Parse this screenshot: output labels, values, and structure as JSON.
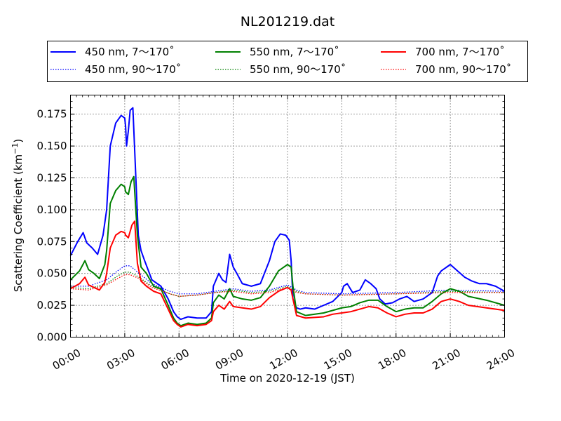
{
  "chart_data": {
    "type": "line",
    "title": "NL201219.dat",
    "xlabel": "Time on 2020-12-19 (JST)",
    "ylabel_main": "Scattering Coefficient (km",
    "ylabel_sup": "−1",
    "ylabel_close": ")",
    "xlim": [
      0,
      24
    ],
    "ylim": [
      0,
      0.19
    ],
    "grid": true,
    "legend_placement": "top, above plot",
    "x_ticks": [
      0,
      3,
      6,
      9,
      12,
      15,
      18,
      21,
      24
    ],
    "x_tick_labels": [
      "00:00",
      "03:00",
      "06:00",
      "09:00",
      "12:00",
      "15:00",
      "18:00",
      "21:00",
      "24:00"
    ],
    "y_ticks": [
      0,
      0.025,
      0.05,
      0.075,
      0.1,
      0.125,
      0.15,
      0.175
    ],
    "y_tick_labels": [
      "0.000",
      "0.025",
      "0.050",
      "0.075",
      "0.100",
      "0.125",
      "0.150",
      "0.175"
    ],
    "series": [
      {
        "name": "450 nm, 7～170˚",
        "color": "#0000ff",
        "style": "solid",
        "x": [
          0,
          0.4,
          0.7,
          0.9,
          1.2,
          1.5,
          1.8,
          2.0,
          2.2,
          2.5,
          2.8,
          3.0,
          3.05,
          3.1,
          3.2,
          3.3,
          3.45,
          3.6,
          3.75,
          3.9,
          4.1,
          4.5,
          5.0,
          5.4,
          5.7,
          5.9,
          6.1,
          6.5,
          7.0,
          7.5,
          7.8,
          7.9,
          8.2,
          8.4,
          8.6,
          8.8,
          9.0,
          9.2,
          9.5,
          10.0,
          10.5,
          11.0,
          11.3,
          11.6,
          11.9,
          12.1,
          12.2,
          12.3,
          12.5,
          12.7,
          13.0,
          13.5,
          14.0,
          14.5,
          15.0,
          15.1,
          15.3,
          15.6,
          16.0,
          16.3,
          16.6,
          16.9,
          17.1,
          17.4,
          17.8,
          18.2,
          18.6,
          19.0,
          19.5,
          20.0,
          20.3,
          20.5,
          20.8,
          21.0,
          21.4,
          21.8,
          22.2,
          22.6,
          23.0,
          23.5,
          24.0
        ],
        "y": [
          0.064,
          0.075,
          0.082,
          0.074,
          0.07,
          0.065,
          0.08,
          0.1,
          0.15,
          0.168,
          0.174,
          0.172,
          0.165,
          0.15,
          0.162,
          0.178,
          0.18,
          0.13,
          0.08,
          0.068,
          0.06,
          0.045,
          0.04,
          0.03,
          0.02,
          0.016,
          0.014,
          0.016,
          0.015,
          0.015,
          0.02,
          0.04,
          0.05,
          0.045,
          0.043,
          0.065,
          0.055,
          0.05,
          0.042,
          0.04,
          0.042,
          0.06,
          0.075,
          0.081,
          0.08,
          0.076,
          0.06,
          0.03,
          0.023,
          0.022,
          0.023,
          0.022,
          0.025,
          0.028,
          0.035,
          0.04,
          0.042,
          0.035,
          0.037,
          0.045,
          0.042,
          0.038,
          0.03,
          0.026,
          0.027,
          0.03,
          0.032,
          0.028,
          0.03,
          0.035,
          0.048,
          0.052,
          0.055,
          0.057,
          0.052,
          0.047,
          0.044,
          0.042,
          0.042,
          0.04,
          0.036
        ]
      },
      {
        "name": "450 nm, 90～170˚",
        "color": "#0000ff",
        "style": "dotted",
        "x": [
          0,
          1.0,
          2.0,
          2.6,
          3.0,
          3.3,
          3.8,
          4.5,
          5.5,
          6.0,
          7.0,
          8.0,
          9.0,
          10.0,
          11.0,
          12.0,
          12.5,
          13.0,
          15.0,
          18.0,
          21.0,
          24.0
        ],
        "y": [
          0.04,
          0.04,
          0.045,
          0.052,
          0.056,
          0.056,
          0.05,
          0.042,
          0.036,
          0.034,
          0.034,
          0.036,
          0.038,
          0.036,
          0.037,
          0.041,
          0.037,
          0.035,
          0.034,
          0.035,
          0.037,
          0.036
        ]
      },
      {
        "name": "550 nm, 7～170˚",
        "color": "#008000",
        "style": "solid",
        "x": [
          0,
          0.5,
          0.8,
          1.0,
          1.3,
          1.6,
          1.9,
          2.0,
          2.2,
          2.5,
          2.8,
          3.0,
          3.05,
          3.2,
          3.35,
          3.5,
          3.7,
          3.9,
          4.2,
          4.6,
          5.0,
          5.4,
          5.7,
          5.9,
          6.1,
          6.5,
          7.0,
          7.5,
          7.8,
          7.9,
          8.2,
          8.5,
          8.8,
          9.0,
          9.5,
          10.0,
          10.5,
          11.0,
          11.5,
          12.0,
          12.2,
          12.3,
          12.5,
          13.0,
          14.0,
          14.5,
          15.0,
          15.5,
          16.0,
          16.5,
          17.0,
          17.5,
          18.0,
          18.5,
          19.0,
          19.5,
          20.0,
          20.5,
          21.0,
          21.5,
          22.0,
          23.0,
          24.0
        ],
        "y": [
          0.045,
          0.052,
          0.06,
          0.053,
          0.05,
          0.046,
          0.057,
          0.068,
          0.105,
          0.115,
          0.12,
          0.118,
          0.114,
          0.112,
          0.122,
          0.126,
          0.08,
          0.055,
          0.05,
          0.04,
          0.038,
          0.025,
          0.015,
          0.011,
          0.009,
          0.011,
          0.01,
          0.011,
          0.015,
          0.027,
          0.033,
          0.03,
          0.038,
          0.032,
          0.03,
          0.029,
          0.031,
          0.04,
          0.052,
          0.057,
          0.055,
          0.04,
          0.02,
          0.017,
          0.019,
          0.021,
          0.023,
          0.024,
          0.027,
          0.029,
          0.029,
          0.024,
          0.02,
          0.022,
          0.023,
          0.023,
          0.028,
          0.034,
          0.038,
          0.036,
          0.032,
          0.029,
          0.025
        ]
      },
      {
        "name": "550 nm, 90～170˚",
        "color": "#008000",
        "style": "dotted",
        "x": [
          0,
          1.0,
          2.0,
          2.6,
          3.0,
          3.3,
          3.8,
          4.5,
          5.5,
          6.0,
          7.0,
          8.0,
          9.0,
          10.0,
          11.0,
          12.0,
          12.5,
          13.0,
          15.0,
          18.0,
          21.0,
          24.0
        ],
        "y": [
          0.039,
          0.038,
          0.042,
          0.048,
          0.051,
          0.051,
          0.047,
          0.04,
          0.034,
          0.032,
          0.033,
          0.035,
          0.037,
          0.035,
          0.036,
          0.04,
          0.036,
          0.034,
          0.033,
          0.034,
          0.036,
          0.035
        ]
      },
      {
        "name": "700 nm, 7～170˚",
        "color": "#ff0000",
        "style": "solid",
        "x": [
          0,
          0.5,
          0.8,
          1.0,
          1.3,
          1.6,
          1.9,
          2.0,
          2.2,
          2.5,
          2.8,
          3.0,
          3.05,
          3.2,
          3.4,
          3.55,
          3.7,
          3.9,
          4.2,
          4.6,
          5.0,
          5.4,
          5.7,
          5.9,
          6.1,
          6.5,
          7.0,
          7.5,
          7.8,
          7.9,
          8.2,
          8.5,
          8.8,
          9.0,
          9.5,
          10.0,
          10.5,
          11.0,
          11.5,
          12.0,
          12.2,
          12.3,
          12.5,
          13.0,
          14.0,
          14.5,
          15.0,
          15.5,
          16.0,
          16.5,
          17.0,
          17.5,
          18.0,
          18.5,
          19.0,
          19.5,
          20.0,
          20.5,
          21.0,
          21.5,
          22.0,
          23.0,
          24.0
        ],
        "y": [
          0.038,
          0.042,
          0.047,
          0.041,
          0.039,
          0.037,
          0.043,
          0.05,
          0.07,
          0.08,
          0.083,
          0.082,
          0.08,
          0.078,
          0.088,
          0.091,
          0.058,
          0.044,
          0.04,
          0.036,
          0.034,
          0.022,
          0.013,
          0.01,
          0.008,
          0.01,
          0.009,
          0.01,
          0.013,
          0.02,
          0.025,
          0.022,
          0.028,
          0.024,
          0.023,
          0.022,
          0.024,
          0.031,
          0.036,
          0.039,
          0.037,
          0.03,
          0.017,
          0.015,
          0.016,
          0.018,
          0.019,
          0.02,
          0.022,
          0.024,
          0.023,
          0.019,
          0.016,
          0.018,
          0.019,
          0.019,
          0.022,
          0.028,
          0.03,
          0.028,
          0.025,
          0.023,
          0.021
        ]
      },
      {
        "name": "700 nm, 90～170˚",
        "color": "#ff0000",
        "style": "dotted",
        "x": [
          0,
          1.0,
          2.0,
          2.6,
          3.0,
          3.3,
          3.8,
          4.5,
          5.5,
          6.0,
          7.0,
          8.0,
          9.0,
          10.0,
          11.0,
          12.0,
          12.5,
          13.0,
          15.0,
          18.0,
          21.0,
          24.0
        ],
        "y": [
          0.038,
          0.037,
          0.041,
          0.046,
          0.049,
          0.049,
          0.046,
          0.039,
          0.034,
          0.032,
          0.033,
          0.035,
          0.036,
          0.034,
          0.035,
          0.039,
          0.035,
          0.034,
          0.033,
          0.034,
          0.035,
          0.035
        ]
      }
    ]
  }
}
